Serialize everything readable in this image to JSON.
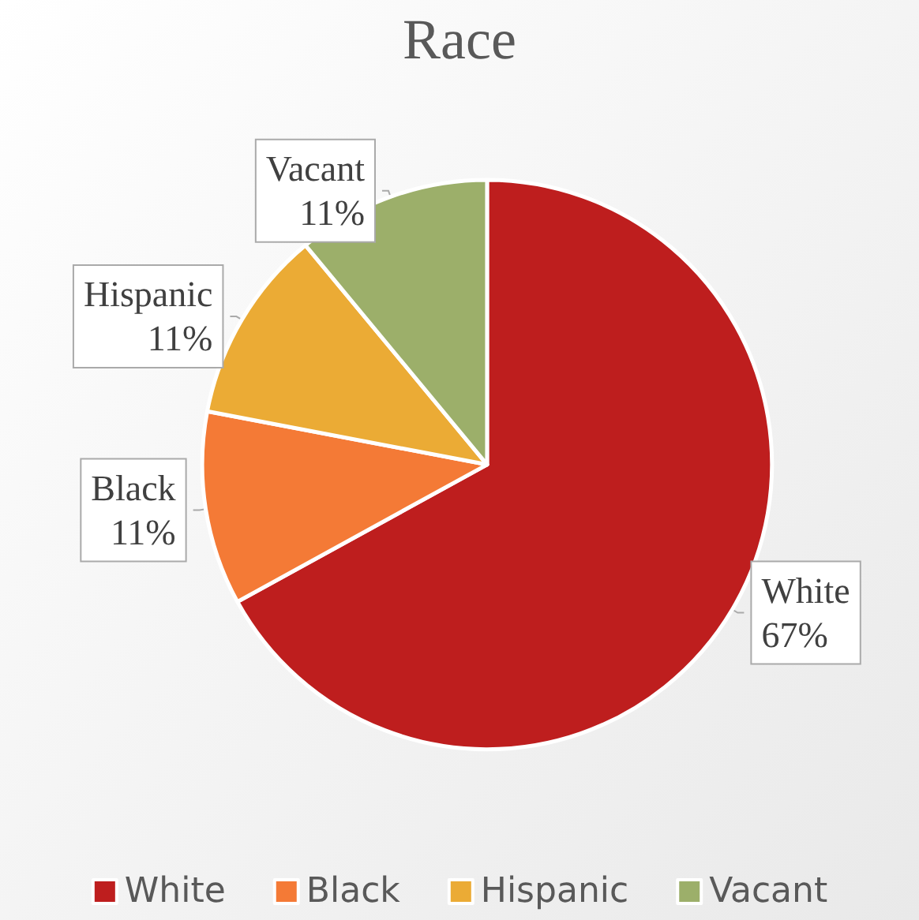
{
  "chart_data": {
    "type": "pie",
    "title": "Race",
    "categories": [
      "White",
      "Black",
      "Hispanic",
      "Vacant"
    ],
    "values": [
      67,
      11,
      11,
      11
    ],
    "value_labels": [
      "67%",
      "11%",
      "11%",
      "11%"
    ],
    "colors": [
      "#be1e1e",
      "#f47a36",
      "#ebab35",
      "#9caf6a"
    ],
    "legend": "bottom"
  }
}
